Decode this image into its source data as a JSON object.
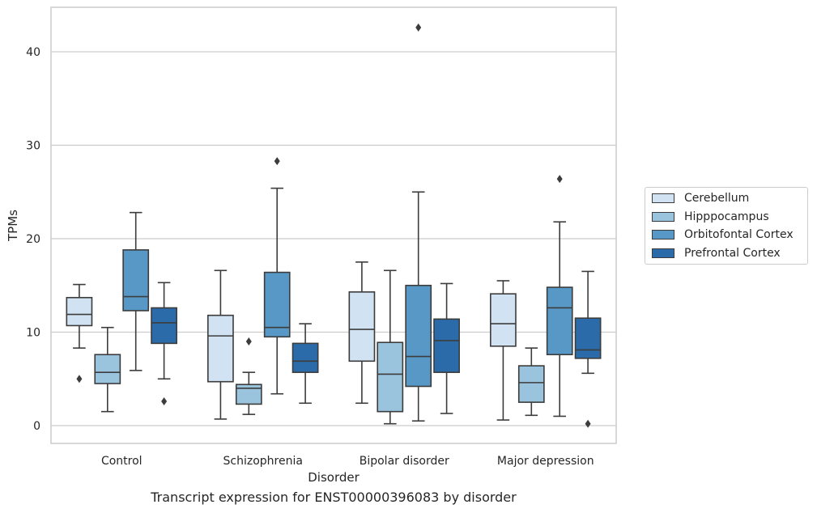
{
  "chart_data": {
    "type": "box",
    "title": "",
    "caption": "Transcript expression for ENST00000396083 by disorder",
    "xlabel": "Disorder",
    "ylabel": "TPMs",
    "ylim": [
      -1.8,
      45
    ],
    "yticks": [
      0,
      10,
      20,
      30,
      40
    ],
    "grid": "horizontal",
    "legend_position": "right",
    "categories": [
      "Control",
      "Schizophrenia",
      "Bipolar disorder",
      "Major depression"
    ],
    "series": [
      {
        "name": "Cerebellum",
        "color": "#d1e2f2",
        "boxes": [
          {
            "whislo": 8.3,
            "q1": 10.7,
            "med": 11.9,
            "q3": 13.7,
            "whishi": 15.1,
            "fliers": [
              5.0
            ]
          },
          {
            "whislo": 0.7,
            "q1": 4.7,
            "med": 9.6,
            "q3": 11.8,
            "whishi": 16.6,
            "fliers": []
          },
          {
            "whislo": 2.4,
            "q1": 6.9,
            "med": 10.3,
            "q3": 14.3,
            "whishi": 17.5,
            "fliers": []
          },
          {
            "whislo": 0.6,
            "q1": 8.5,
            "med": 10.9,
            "q3": 14.1,
            "whishi": 15.5,
            "fliers": []
          }
        ]
      },
      {
        "name": "Hipppocampus",
        "color": "#9ac3dd",
        "boxes": [
          {
            "whislo": 1.5,
            "q1": 4.5,
            "med": 5.7,
            "q3": 7.6,
            "whishi": 10.5,
            "fliers": []
          },
          {
            "whislo": 1.2,
            "q1": 2.3,
            "med": 4.0,
            "q3": 4.4,
            "whishi": 5.7,
            "fliers": [
              9.0
            ]
          },
          {
            "whislo": 0.2,
            "q1": 1.5,
            "med": 5.5,
            "q3": 8.9,
            "whishi": 16.6,
            "fliers": []
          },
          {
            "whislo": 1.1,
            "q1": 2.5,
            "med": 4.6,
            "q3": 6.4,
            "whishi": 8.3,
            "fliers": []
          }
        ]
      },
      {
        "name": "Orbitofontal Cortex",
        "color": "#5898c6",
        "boxes": [
          {
            "whislo": 5.9,
            "q1": 12.3,
            "med": 13.8,
            "q3": 18.8,
            "whishi": 22.8,
            "fliers": []
          },
          {
            "whislo": 3.4,
            "q1": 9.5,
            "med": 10.5,
            "q3": 16.4,
            "whishi": 25.4,
            "fliers": [
              28.3
            ]
          },
          {
            "whislo": 0.5,
            "q1": 4.2,
            "med": 7.4,
            "q3": 15.0,
            "whishi": 25.0,
            "fliers": [
              42.6
            ]
          },
          {
            "whislo": 1.0,
            "q1": 7.6,
            "med": 12.6,
            "q3": 14.8,
            "whishi": 21.8,
            "fliers": [
              26.4
            ]
          }
        ]
      },
      {
        "name": "Prefrontal Cortex",
        "color": "#2b6ba9",
        "boxes": [
          {
            "whislo": 5.0,
            "q1": 8.8,
            "med": 11.0,
            "q3": 12.6,
            "whishi": 15.3,
            "fliers": [
              2.6
            ]
          },
          {
            "whislo": 2.4,
            "q1": 5.7,
            "med": 6.9,
            "q3": 8.8,
            "whishi": 10.9,
            "fliers": []
          },
          {
            "whislo": 1.3,
            "q1": 5.7,
            "med": 9.1,
            "q3": 11.4,
            "whishi": 15.2,
            "fliers": []
          },
          {
            "whislo": 5.6,
            "q1": 7.2,
            "med": 8.1,
            "q3": 11.5,
            "whishi": 16.5,
            "fliers": [
              0.2
            ]
          }
        ]
      }
    ]
  }
}
